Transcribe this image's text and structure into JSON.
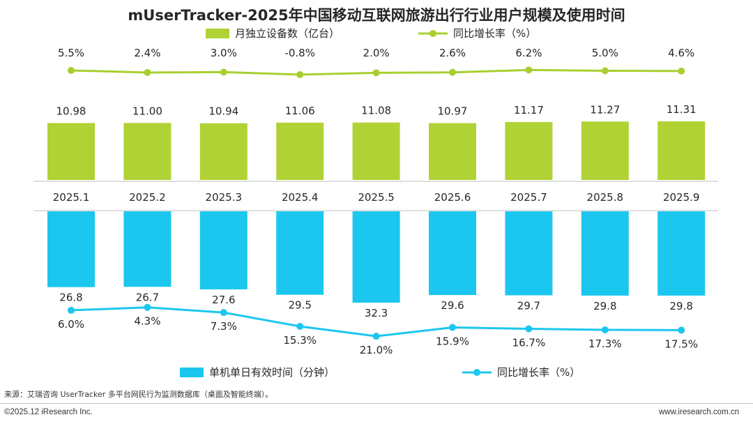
{
  "chart_data": {
    "type": "bar",
    "title": "mUserTracker-2025年中国移动互联网旅游出行行业用户规模及使用时间",
    "categories": [
      "2025.1",
      "2025.2",
      "2025.3",
      "2025.4",
      "2025.5",
      "2025.6",
      "2025.7",
      "2025.8",
      "2025.9"
    ],
    "top": {
      "bar_series": {
        "name": "月独立设备数（亿台）",
        "values": [
          10.98,
          11.0,
          10.94,
          11.06,
          11.08,
          10.97,
          11.17,
          11.27,
          11.31
        ],
        "color": "#b0d235"
      },
      "line_series": {
        "name": "同比增长率（%）",
        "values": [
          5.5,
          2.4,
          3.0,
          -0.8,
          2.0,
          2.6,
          6.2,
          5.0,
          4.6
        ],
        "labels": [
          "5.5%",
          "2.4%",
          "3.0%",
          "-0.8%",
          "2.0%",
          "2.6%",
          "6.2%",
          "5.0%",
          "4.6%"
        ],
        "color": "#a8cf30"
      }
    },
    "bottom": {
      "bar_series": {
        "name": "单机单日有效时间（分钟）",
        "values": [
          26.8,
          26.7,
          27.6,
          29.5,
          32.3,
          29.6,
          29.7,
          29.8,
          29.8
        ],
        "labels": [
          "26.8",
          "26.7",
          "27.6",
          "29.5",
          "32.3",
          "29.6",
          "29.7",
          "29.8",
          "29.8"
        ],
        "color": "#1cc7ef"
      },
      "line_series": {
        "name": "同比增长率（%）",
        "values": [
          6.0,
          4.3,
          7.3,
          15.3,
          21.0,
          15.9,
          16.7,
          17.3,
          17.5
        ],
        "labels": [
          "6.0%",
          "4.3%",
          "7.3%",
          "15.3%",
          "21.0%",
          "15.9%",
          "16.7%",
          "17.3%",
          "17.5%"
        ],
        "color": "#1cc7ef"
      }
    }
  },
  "footer": {
    "source": "来源：艾瑞咨询 UserTracker 多平台网民行为监测数据库（桌面及智能终端）。",
    "copyright": "©2025.12 iResearch Inc.",
    "website": "www.iresearch.com.cn"
  }
}
